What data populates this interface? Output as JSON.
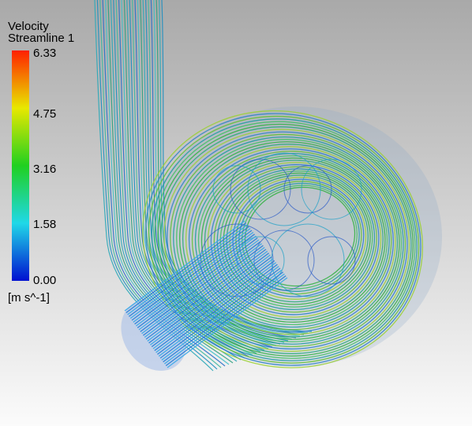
{
  "legend": {
    "title": "Velocity",
    "subtitle": "Streamline 1",
    "labels": [
      "6.33",
      "4.75",
      "3.16",
      "1.58",
      "0.00"
    ],
    "unit": "[m s^-1]"
  }
}
